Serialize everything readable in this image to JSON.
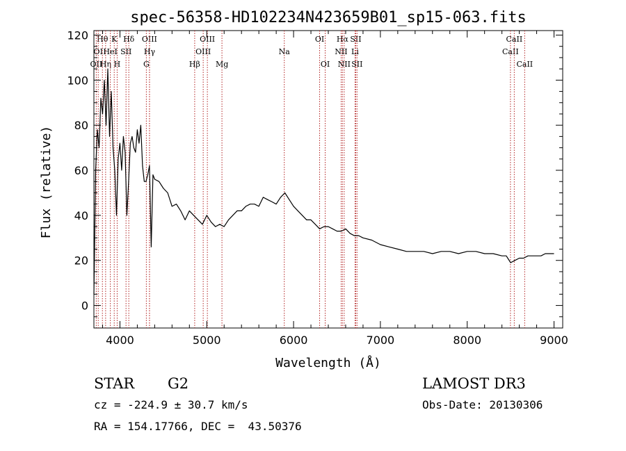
{
  "chart_data": {
    "type": "line",
    "title": "spec-56358-HD102234N423659B01_sp15-063.fits",
    "xlabel": "Wavelength (Å)",
    "ylabel": "Flux (relative)",
    "xlim": [
      3700,
      9100
    ],
    "ylim": [
      -10,
      122
    ],
    "x_ticks": [
      4000,
      5000,
      6000,
      7000,
      8000,
      9000
    ],
    "y_ticks": [
      0,
      20,
      40,
      60,
      80,
      100,
      120
    ],
    "x_tick_labels": [
      "4000",
      "5000",
      "6000",
      "7000",
      "8000",
      "9000"
    ],
    "y_tick_labels": [
      "0",
      "20",
      "40",
      "60",
      "80",
      "100",
      "120"
    ],
    "line_color": "#000000",
    "marker_color": "#b22222",
    "grid": false,
    "line_markers": [
      {
        "label": "OII",
        "x": 3727,
        "row": 3
      },
      {
        "label": "Hθ",
        "x": 3798,
        "row": 1
      },
      {
        "label": "OI",
        "x": 3750,
        "row": 2
      },
      {
        "label": "Hη",
        "x": 3835,
        "row": 3
      },
      {
        "label": "HeI",
        "x": 3889,
        "row": 2
      },
      {
        "label": "K",
        "x": 3934,
        "row": 1
      },
      {
        "label": "H",
        "x": 3968,
        "row": 3
      },
      {
        "label": "SII",
        "x": 4070,
        "row": 2
      },
      {
        "label": "Hδ",
        "x": 4102,
        "row": 1
      },
      {
        "label": "G",
        "x": 4304,
        "row": 3
      },
      {
        "label": "OIII",
        "x": 4340,
        "row": 1
      },
      {
        "label": "Hγ",
        "x": 4341,
        "row": 2
      },
      {
        "label": "Hβ",
        "x": 4861,
        "row": 3
      },
      {
        "label": "OIII",
        "x": 4959,
        "row": 2
      },
      {
        "label": "OIII",
        "x": 5007,
        "row": 1
      },
      {
        "label": "Mg",
        "x": 5175,
        "row": 3
      },
      {
        "label": "Na",
        "x": 5893,
        "row": 2
      },
      {
        "label": "OI",
        "x": 6300,
        "row": 1
      },
      {
        "label": "OI",
        "x": 6364,
        "row": 3
      },
      {
        "label": "Hα",
        "x": 6563,
        "row": 1
      },
      {
        "label": "NII",
        "x": 6548,
        "row": 2
      },
      {
        "label": "NII",
        "x": 6583,
        "row": 3
      },
      {
        "label": "SII",
        "x": 6716,
        "row": 1
      },
      {
        "label": "Li",
        "x": 6708,
        "row": 2
      },
      {
        "label": "SII",
        "x": 6731,
        "row": 3
      },
      {
        "label": "CaII",
        "x": 8498,
        "row": 2
      },
      {
        "label": "CaII",
        "x": 8542,
        "row": 1
      },
      {
        "label": "CaII",
        "x": 8662,
        "row": 3
      }
    ],
    "series": [
      {
        "x": [
          3700,
          3720,
          3740,
          3760,
          3780,
          3800,
          3820,
          3840,
          3860,
          3880,
          3900,
          3920,
          3940,
          3960,
          3980,
          4000,
          4020,
          4040,
          4060,
          4080,
          4100,
          4120,
          4140,
          4160,
          4180,
          4200,
          4220,
          4240,
          4260,
          4280,
          4300,
          4320,
          4340,
          4360,
          4380,
          4400,
          4450,
          4500,
          4550,
          4600,
          4650,
          4700,
          4750,
          4800,
          4850,
          4900,
          4950,
          5000,
          5050,
          5100,
          5150,
          5200,
          5250,
          5300,
          5350,
          5400,
          5450,
          5500,
          5550,
          5600,
          5650,
          5700,
          5750,
          5800,
          5850,
          5900,
          5950,
          6000,
          6050,
          6100,
          6150,
          6200,
          6250,
          6300,
          6350,
          6400,
          6450,
          6500,
          6550,
          6600,
          6650,
          6700,
          6750,
          6800,
          6900,
          7000,
          7100,
          7200,
          7300,
          7400,
          7500,
          7600,
          7700,
          7800,
          7900,
          8000,
          8100,
          8200,
          8300,
          8400,
          8450,
          8500,
          8550,
          8600,
          8650,
          8700,
          8750,
          8800,
          8850,
          8900,
          8950,
          9000
        ],
        "y": [
          5,
          60,
          78,
          70,
          92,
          85,
          100,
          80,
          105,
          75,
          95,
          70,
          60,
          40,
          65,
          72,
          60,
          75,
          68,
          40,
          55,
          72,
          75,
          70,
          68,
          78,
          72,
          80,
          62,
          55,
          55,
          58,
          62,
          26,
          58,
          56,
          55,
          52,
          50,
          44,
          45,
          42,
          38,
          42,
          40,
          38,
          36,
          40,
          37,
          35,
          36,
          35,
          38,
          40,
          42,
          42,
          44,
          45,
          45,
          44,
          48,
          47,
          46,
          45,
          48,
          50,
          47,
          44,
          42,
          40,
          38,
          38,
          36,
          34,
          35,
          35,
          34,
          33,
          33,
          34,
          32,
          31,
          31,
          30,
          29,
          27,
          26,
          25,
          24,
          24,
          24,
          23,
          24,
          24,
          23,
          24,
          24,
          23,
          23,
          22,
          22,
          19,
          20,
          21,
          21,
          22,
          22,
          22,
          22,
          23,
          23,
          23
        ]
      }
    ]
  },
  "info": {
    "object_type": "STAR",
    "subclass": "G2",
    "survey": "LAMOST DR3",
    "cz": "cz = -224.9 ± 30.7 km/s",
    "obs_date": "Obs-Date: 20130306",
    "coords": "RA = 154.17766, DEC =  43.50376"
  }
}
